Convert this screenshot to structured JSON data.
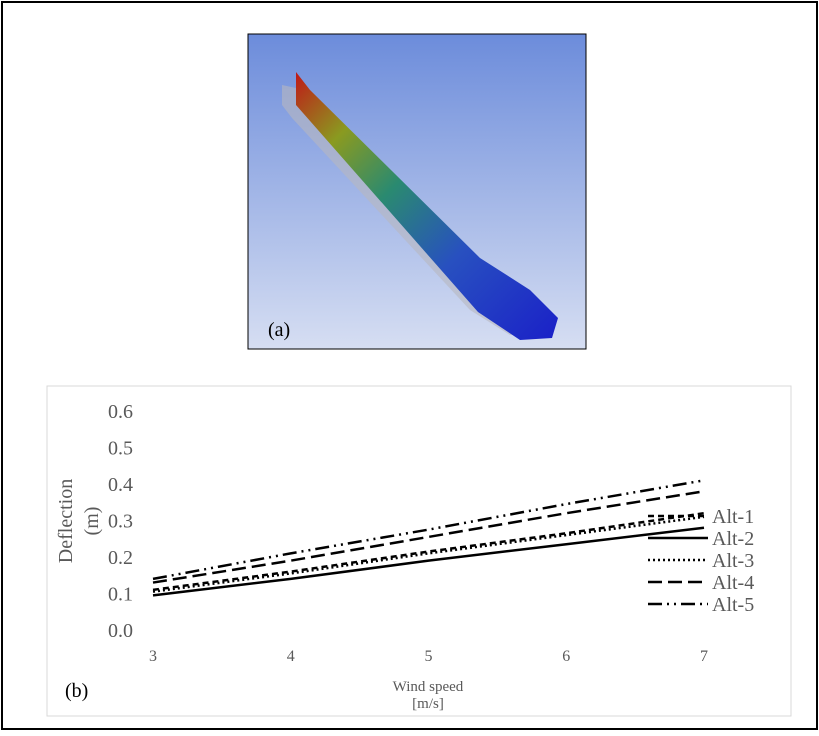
{
  "image_panel": {
    "label": "(a)"
  },
  "chart_data": {
    "type": "line",
    "panel_label": "(b)",
    "x_label": [
      "Wind speed",
      "[m/s]"
    ],
    "y_label": [
      "Deflection",
      "(m)"
    ],
    "x": [
      3,
      4,
      5,
      6,
      7
    ],
    "xlim": [
      3,
      7
    ],
    "xticks": [
      3,
      4,
      5,
      6,
      7
    ],
    "ylim": [
      0,
      0.6
    ],
    "yticks": [
      {
        "value": 0,
        "label": "0.0"
      },
      0.1,
      0.2,
      0.3,
      0.4,
      0.5,
      0.6
    ],
    "grid": false,
    "legend": "right",
    "series": [
      {
        "name": "Alt-1",
        "color": "#000000",
        "dash": "6 4",
        "values": [
          0.11,
          0.16,
          0.215,
          0.265,
          0.32
        ]
      },
      {
        "name": "Alt-2",
        "color": "#000000",
        "dash": "none",
        "values": [
          0.095,
          0.14,
          0.19,
          0.235,
          0.28
        ]
      },
      {
        "name": "Alt-3",
        "color": "#000000",
        "dash": "2 3",
        "values": [
          0.105,
          0.155,
          0.21,
          0.26,
          0.31
        ]
      },
      {
        "name": "Alt-4",
        "color": "#000000",
        "dash": "14 6",
        "values": [
          0.13,
          0.19,
          0.255,
          0.32,
          0.38
        ]
      },
      {
        "name": "Alt-5",
        "color": "#000000",
        "dash": "14 5 2 5 2 5",
        "values": [
          0.14,
          0.21,
          0.275,
          0.345,
          0.41
        ]
      }
    ]
  }
}
